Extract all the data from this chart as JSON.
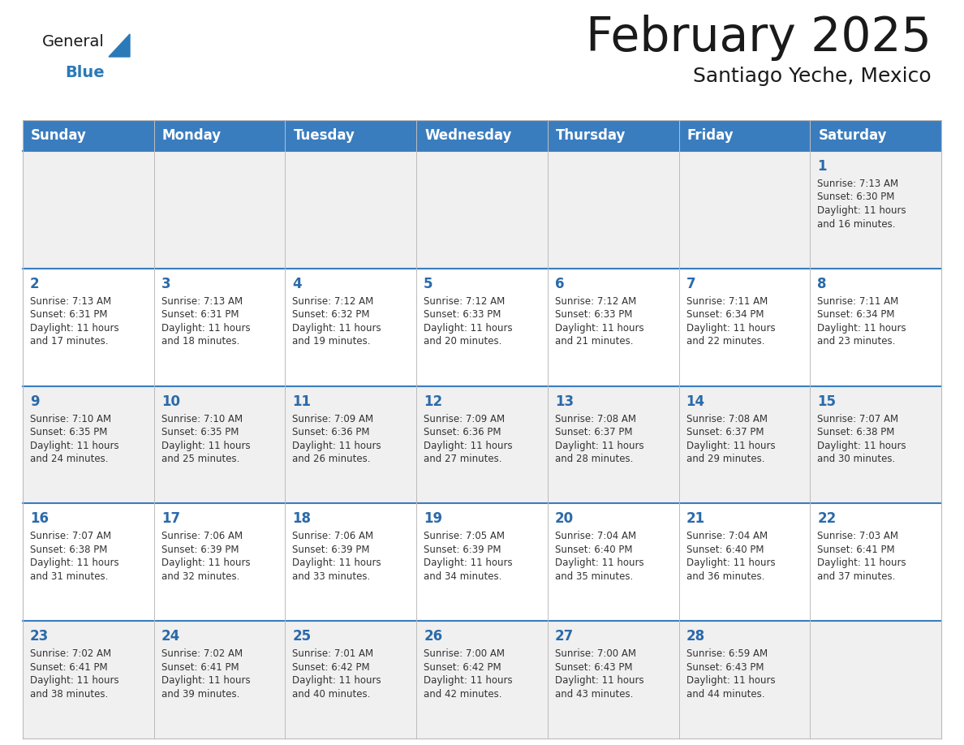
{
  "title": "February 2025",
  "subtitle": "Santiago Yeche, Mexico",
  "header_bg": "#3a7dbf",
  "header_text_color": "#ffffff",
  "cell_bg_light": "#f0f0f0",
  "cell_bg_white": "#ffffff",
  "day_headers": [
    "Sunday",
    "Monday",
    "Tuesday",
    "Wednesday",
    "Thursday",
    "Friday",
    "Saturday"
  ],
  "title_color": "#1a1a1a",
  "subtitle_color": "#1a1a1a",
  "cell_text_color": "#333333",
  "day_num_color": "#2a6aaa",
  "grid_color_light": "#bbbbbb",
  "grid_color_dark": "#3a7dbf",
  "logo_general_color": "#1a1a1a",
  "logo_blue_color": "#2a7ab8",
  "weeks": [
    [
      null,
      null,
      null,
      null,
      null,
      null,
      1
    ],
    [
      2,
      3,
      4,
      5,
      6,
      7,
      8
    ],
    [
      9,
      10,
      11,
      12,
      13,
      14,
      15
    ],
    [
      16,
      17,
      18,
      19,
      20,
      21,
      22
    ],
    [
      23,
      24,
      25,
      26,
      27,
      28,
      null
    ]
  ],
  "cell_data": {
    "1": {
      "sunrise": "7:13 AM",
      "sunset": "6:30 PM",
      "daylight": "11 hours and 16 minutes."
    },
    "2": {
      "sunrise": "7:13 AM",
      "sunset": "6:31 PM",
      "daylight": "11 hours and 17 minutes."
    },
    "3": {
      "sunrise": "7:13 AM",
      "sunset": "6:31 PM",
      "daylight": "11 hours and 18 minutes."
    },
    "4": {
      "sunrise": "7:12 AM",
      "sunset": "6:32 PM",
      "daylight": "11 hours and 19 minutes."
    },
    "5": {
      "sunrise": "7:12 AM",
      "sunset": "6:33 PM",
      "daylight": "11 hours and 20 minutes."
    },
    "6": {
      "sunrise": "7:12 AM",
      "sunset": "6:33 PM",
      "daylight": "11 hours and 21 minutes."
    },
    "7": {
      "sunrise": "7:11 AM",
      "sunset": "6:34 PM",
      "daylight": "11 hours and 22 minutes."
    },
    "8": {
      "sunrise": "7:11 AM",
      "sunset": "6:34 PM",
      "daylight": "11 hours and 23 minutes."
    },
    "9": {
      "sunrise": "7:10 AM",
      "sunset": "6:35 PM",
      "daylight": "11 hours and 24 minutes."
    },
    "10": {
      "sunrise": "7:10 AM",
      "sunset": "6:35 PM",
      "daylight": "11 hours and 25 minutes."
    },
    "11": {
      "sunrise": "7:09 AM",
      "sunset": "6:36 PM",
      "daylight": "11 hours and 26 minutes."
    },
    "12": {
      "sunrise": "7:09 AM",
      "sunset": "6:36 PM",
      "daylight": "11 hours and 27 minutes."
    },
    "13": {
      "sunrise": "7:08 AM",
      "sunset": "6:37 PM",
      "daylight": "11 hours and 28 minutes."
    },
    "14": {
      "sunrise": "7:08 AM",
      "sunset": "6:37 PM",
      "daylight": "11 hours and 29 minutes."
    },
    "15": {
      "sunrise": "7:07 AM",
      "sunset": "6:38 PM",
      "daylight": "11 hours and 30 minutes."
    },
    "16": {
      "sunrise": "7:07 AM",
      "sunset": "6:38 PM",
      "daylight": "11 hours and 31 minutes."
    },
    "17": {
      "sunrise": "7:06 AM",
      "sunset": "6:39 PM",
      "daylight": "11 hours and 32 minutes."
    },
    "18": {
      "sunrise": "7:06 AM",
      "sunset": "6:39 PM",
      "daylight": "11 hours and 33 minutes."
    },
    "19": {
      "sunrise": "7:05 AM",
      "sunset": "6:39 PM",
      "daylight": "11 hours and 34 minutes."
    },
    "20": {
      "sunrise": "7:04 AM",
      "sunset": "6:40 PM",
      "daylight": "11 hours and 35 minutes."
    },
    "21": {
      "sunrise": "7:04 AM",
      "sunset": "6:40 PM",
      "daylight": "11 hours and 36 minutes."
    },
    "22": {
      "sunrise": "7:03 AM",
      "sunset": "6:41 PM",
      "daylight": "11 hours and 37 minutes."
    },
    "23": {
      "sunrise": "7:02 AM",
      "sunset": "6:41 PM",
      "daylight": "11 hours and 38 minutes."
    },
    "24": {
      "sunrise": "7:02 AM",
      "sunset": "6:41 PM",
      "daylight": "11 hours and 39 minutes."
    },
    "25": {
      "sunrise": "7:01 AM",
      "sunset": "6:42 PM",
      "daylight": "11 hours and 40 minutes."
    },
    "26": {
      "sunrise": "7:00 AM",
      "sunset": "6:42 PM",
      "daylight": "11 hours and 42 minutes."
    },
    "27": {
      "sunrise": "7:00 AM",
      "sunset": "6:43 PM",
      "daylight": "11 hours and 43 minutes."
    },
    "28": {
      "sunrise": "6:59 AM",
      "sunset": "6:43 PM",
      "daylight": "11 hours and 44 minutes."
    }
  }
}
